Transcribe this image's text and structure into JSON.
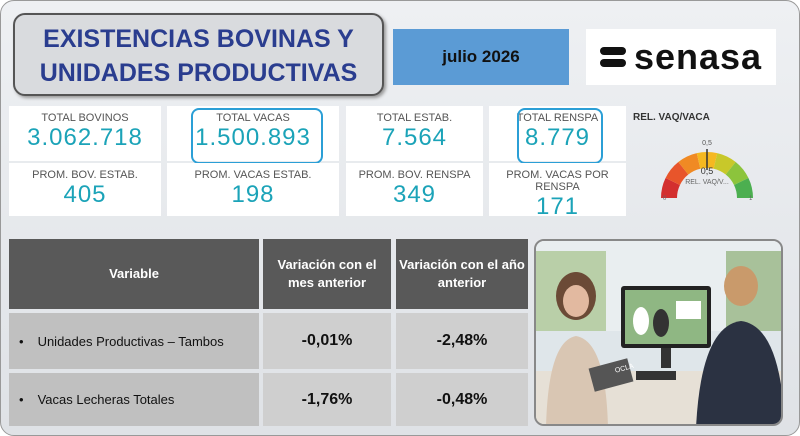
{
  "header": {
    "title_line1": "EXISTENCIAS BOVINAS Y",
    "title_line2": "UNIDADES PRODUCTIVAS",
    "date": "julio 2026",
    "logo": "senasa"
  },
  "kpis": [
    {
      "label": "TOTAL BOVINOS",
      "value": "3.062.718"
    },
    {
      "label": "TOTAL VACAS",
      "value": "1.500.893"
    },
    {
      "label": "TOTAL ESTAB.",
      "value": "7.564"
    },
    {
      "label": "TOTAL RENSPA",
      "value": "8.779"
    },
    {
      "label": "PROM. BOV. ESTAB.",
      "value": "405"
    },
    {
      "label": "PROM. VACAS ESTAB.",
      "value": "198"
    },
    {
      "label": "PROM. BOV. RENSPA",
      "value": "349"
    },
    {
      "label": "PROM. VACAS POR RENSPA",
      "value": "171"
    }
  ],
  "gauge": {
    "title": "REL. VAQ/VACA",
    "min": 0,
    "max": 1,
    "target": {
      "value": 0.5,
      "label": "0,5"
    },
    "value": {
      "value": 0.5,
      "label": "0,5"
    },
    "caption": "REL. VAQ/V..."
  },
  "table": {
    "header": [
      "Variable",
      "Variación con el mes anterior",
      "Variación con el año anterior"
    ],
    "rows": [
      [
        "Unidades Productivas – Tambos",
        "-0,01%",
        "-2,48%"
      ],
      [
        "Vacas Lecheras Totales",
        "-1,76%",
        "-0,48%"
      ]
    ]
  },
  "photo": {
    "laptop_label": "OCLA"
  }
}
